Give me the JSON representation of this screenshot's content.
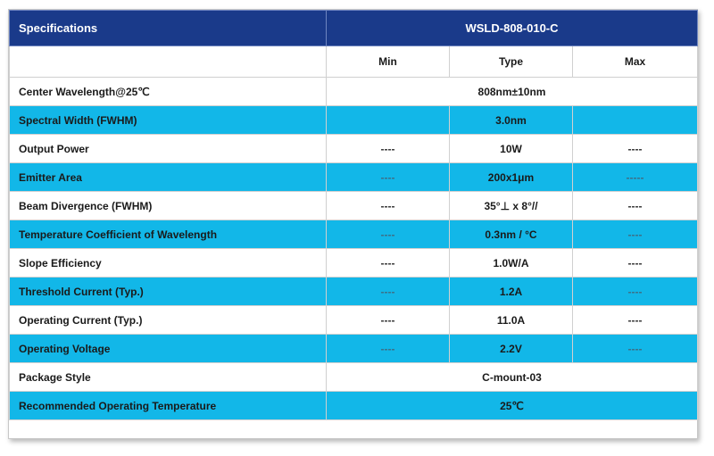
{
  "header": {
    "label": "Specifications",
    "model": "WSLD-808-010-C"
  },
  "columns": {
    "min": "Min",
    "type": "Type",
    "max": "Max"
  },
  "rows": [
    {
      "name": "Center Wavelength@25℃",
      "min": "",
      "type": "808nm±10nm",
      "max": "",
      "span": true,
      "highlight": false
    },
    {
      "name": "Spectral Width (FWHM)",
      "min": "",
      "type": "3.0nm",
      "max": "",
      "span": false,
      "highlight": true
    },
    {
      "name": "Output Power",
      "min": "----",
      "type": "10W",
      "max": "----",
      "span": false,
      "highlight": false
    },
    {
      "name": "Emitter Area",
      "min": "----",
      "type": "200x1μm",
      "max": "-----",
      "span": false,
      "highlight": true
    },
    {
      "name": "Beam Divergence (FWHM)",
      "min": "----",
      "type": "35°⊥ x 8°//",
      "max": "----",
      "span": false,
      "highlight": false
    },
    {
      "name": "Temperature Coefficient of Wavelength",
      "min": "----",
      "type": "0.3nm / °C",
      "max": "----",
      "span": false,
      "highlight": true
    },
    {
      "name": "Slope Efficiency",
      "min": "----",
      "type": "1.0W/A",
      "max": "----",
      "span": false,
      "highlight": false
    },
    {
      "name": "Threshold Current (Typ.)",
      "min": "----",
      "type": "1.2A",
      "max": "----",
      "span": false,
      "highlight": true
    },
    {
      "name": "Operating Current (Typ.)",
      "min": "----",
      "type": "11.0A",
      "max": "----",
      "span": false,
      "highlight": false
    },
    {
      "name": "Operating Voltage",
      "min": "----",
      "type": "2.2V",
      "max": "----",
      "span": false,
      "highlight": true
    },
    {
      "name": "Package Style",
      "min": "",
      "type": "C-mount-03",
      "max": "",
      "span": true,
      "highlight": false
    },
    {
      "name": "Recommended Operating Temperature",
      "min": "",
      "type": "25℃",
      "max": "",
      "span": true,
      "highlight": true
    }
  ],
  "colors": {
    "header": "#1a3a8a",
    "highlight": "#12b7e8",
    "plain": "#ffffff"
  }
}
